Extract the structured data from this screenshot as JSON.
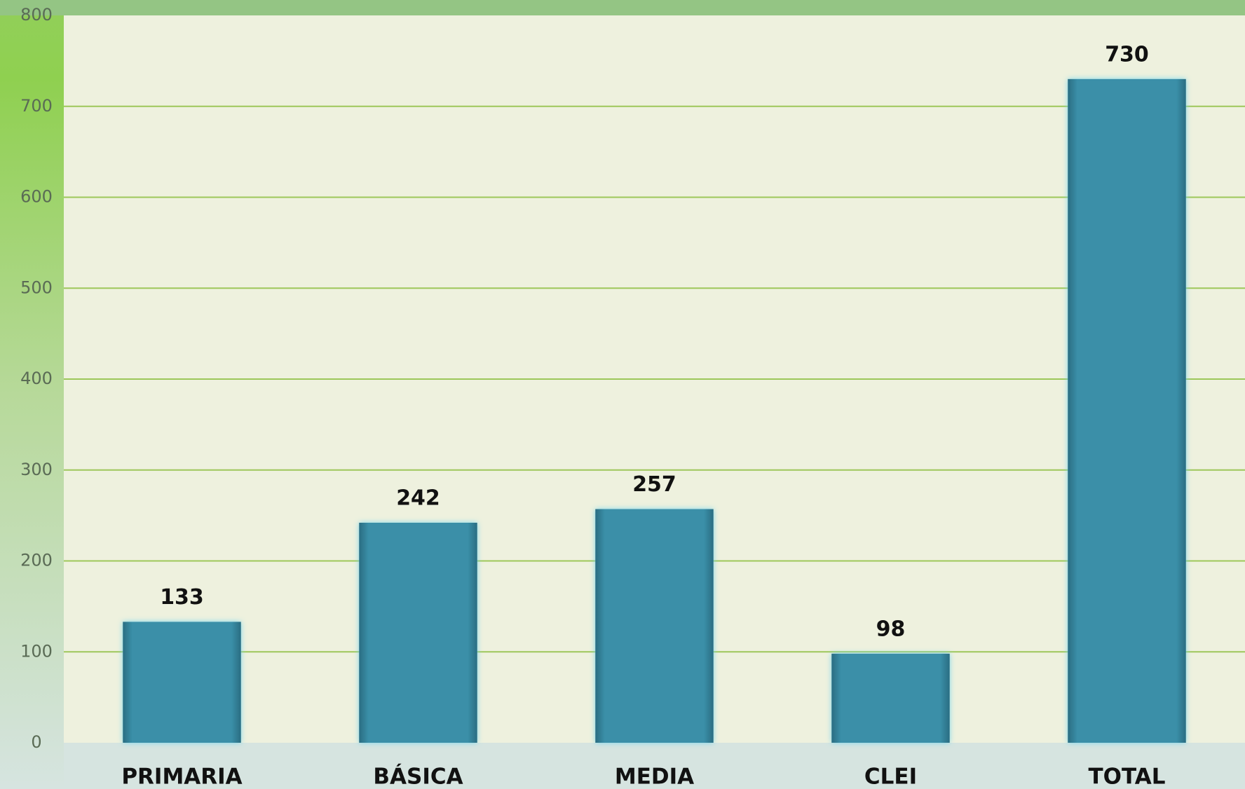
{
  "chart_data": {
    "type": "bar",
    "categories": [
      "PRIMARIA",
      "BÁSICA",
      "MEDIA",
      "CLEI",
      "TOTAL"
    ],
    "values": [
      133,
      242,
      257,
      98,
      730
    ],
    "color": "#3a8fa8",
    "ylim": [
      0,
      800
    ],
    "yticks": [
      0,
      100,
      200,
      300,
      400,
      500,
      600,
      700,
      800
    ],
    "grid": true
  }
}
